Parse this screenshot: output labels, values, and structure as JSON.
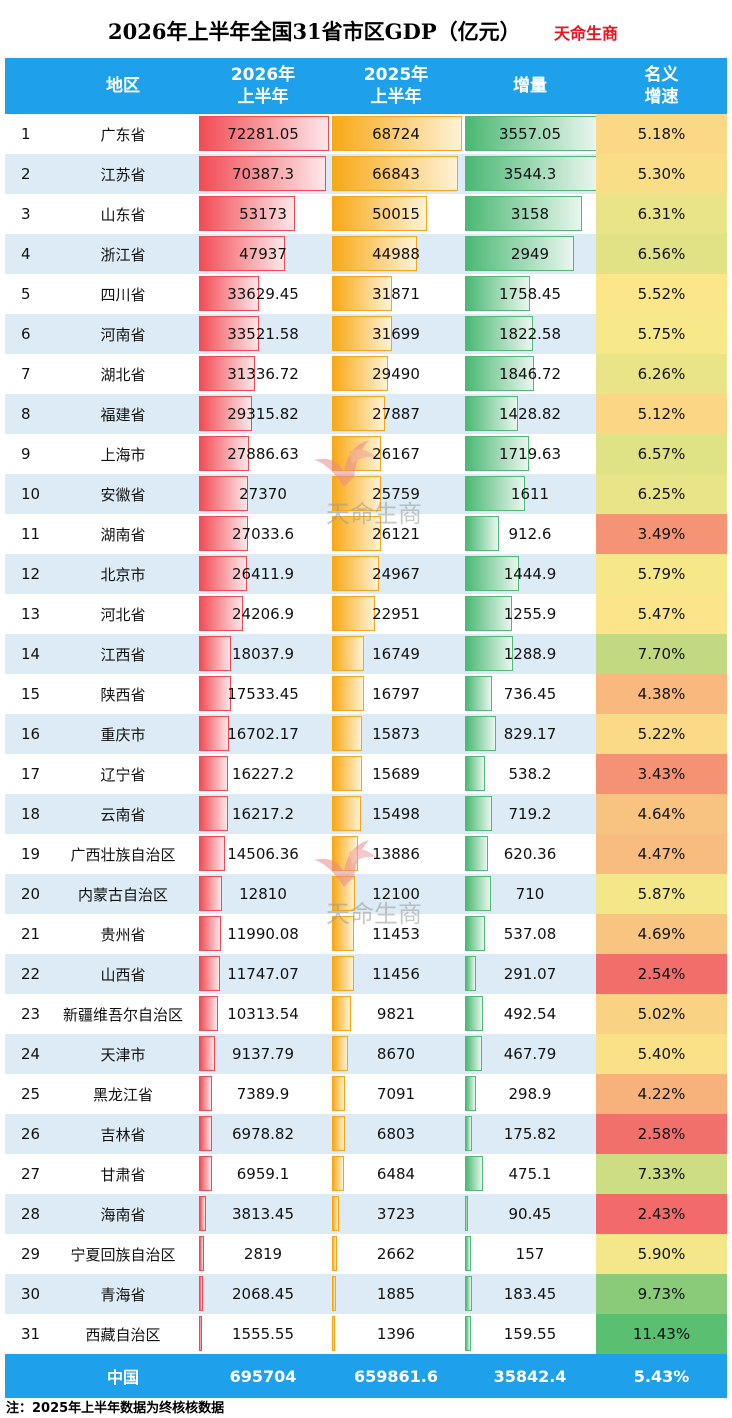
{
  "title": "2026年上半年全国31省市区GDP（亿元）",
  "brand": "天命生商",
  "header": {
    "region": "地区",
    "h2026": [
      "2026年",
      "上半年"
    ],
    "h2025": [
      "2025年",
      "上半年"
    ],
    "increase": "增量",
    "rate": [
      "名义",
      "增速"
    ]
  },
  "rows": [
    {
      "rank": "1",
      "name": "广东省",
      "v2026": "72281.05",
      "v2025": "68724",
      "inc": "3557.05",
      "rate": "5.18%"
    },
    {
      "rank": "2",
      "name": "江苏省",
      "v2026": "70387.3",
      "v2025": "66843",
      "inc": "3544.3",
      "rate": "5.30%"
    },
    {
      "rank": "3",
      "name": "山东省",
      "v2026": "53173",
      "v2025": "50015",
      "inc": "3158",
      "rate": "6.31%"
    },
    {
      "rank": "4",
      "name": "浙江省",
      "v2026": "47937",
      "v2025": "44988",
      "inc": "2949",
      "rate": "6.56%"
    },
    {
      "rank": "5",
      "name": "四川省",
      "v2026": "33629.45",
      "v2025": "31871",
      "inc": "1758.45",
      "rate": "5.52%"
    },
    {
      "rank": "6",
      "name": "河南省",
      "v2026": "33521.58",
      "v2025": "31699",
      "inc": "1822.58",
      "rate": "5.75%"
    },
    {
      "rank": "7",
      "name": "湖北省",
      "v2026": "31336.72",
      "v2025": "29490",
      "inc": "1846.72",
      "rate": "6.26%"
    },
    {
      "rank": "8",
      "name": "福建省",
      "v2026": "29315.82",
      "v2025": "27887",
      "inc": "1428.82",
      "rate": "5.12%"
    },
    {
      "rank": "9",
      "name": "上海市",
      "v2026": "27886.63",
      "v2025": "26167",
      "inc": "1719.63",
      "rate": "6.57%"
    },
    {
      "rank": "10",
      "name": "安徽省",
      "v2026": "27370",
      "v2025": "25759",
      "inc": "1611",
      "rate": "6.25%"
    },
    {
      "rank": "11",
      "name": "湖南省",
      "v2026": "27033.6",
      "v2025": "26121",
      "inc": "912.6",
      "rate": "3.49%"
    },
    {
      "rank": "12",
      "name": "北京市",
      "v2026": "26411.9",
      "v2025": "24967",
      "inc": "1444.9",
      "rate": "5.79%"
    },
    {
      "rank": "13",
      "name": "河北省",
      "v2026": "24206.9",
      "v2025": "22951",
      "inc": "1255.9",
      "rate": "5.47%"
    },
    {
      "rank": "14",
      "name": "江西省",
      "v2026": "18037.9",
      "v2025": "16749",
      "inc": "1288.9",
      "rate": "7.70%"
    },
    {
      "rank": "15",
      "name": "陕西省",
      "v2026": "17533.45",
      "v2025": "16797",
      "inc": "736.45",
      "rate": "4.38%"
    },
    {
      "rank": "16",
      "name": "重庆市",
      "v2026": "16702.17",
      "v2025": "15873",
      "inc": "829.17",
      "rate": "5.22%"
    },
    {
      "rank": "17",
      "name": "辽宁省",
      "v2026": "16227.2",
      "v2025": "15689",
      "inc": "538.2",
      "rate": "3.43%"
    },
    {
      "rank": "18",
      "name": "云南省",
      "v2026": "16217.2",
      "v2025": "15498",
      "inc": "719.2",
      "rate": "4.64%"
    },
    {
      "rank": "19",
      "name": "广西壮族自治区",
      "v2026": "14506.36",
      "v2025": "13886",
      "inc": "620.36",
      "rate": "4.47%"
    },
    {
      "rank": "20",
      "name": "内蒙古自治区",
      "v2026": "12810",
      "v2025": "12100",
      "inc": "710",
      "rate": "5.87%"
    },
    {
      "rank": "21",
      "name": "贵州省",
      "v2026": "11990.08",
      "v2025": "11453",
      "inc": "537.08",
      "rate": "4.69%"
    },
    {
      "rank": "22",
      "name": "山西省",
      "v2026": "11747.07",
      "v2025": "11456",
      "inc": "291.07",
      "rate": "2.54%"
    },
    {
      "rank": "23",
      "name": "新疆维吾尔自治区",
      "v2026": "10313.54",
      "v2025": "9821",
      "inc": "492.54",
      "rate": "5.02%"
    },
    {
      "rank": "24",
      "name": "天津市",
      "v2026": "9137.79",
      "v2025": "8670",
      "inc": "467.79",
      "rate": "5.40%"
    },
    {
      "rank": "25",
      "name": "黑龙江省",
      "v2026": "7389.9",
      "v2025": "7091",
      "inc": "298.9",
      "rate": "4.22%"
    },
    {
      "rank": "26",
      "name": "吉林省",
      "v2026": "6978.82",
      "v2025": "6803",
      "inc": "175.82",
      "rate": "2.58%"
    },
    {
      "rank": "27",
      "name": "甘肃省",
      "v2026": "6959.1",
      "v2025": "6484",
      "inc": "475.1",
      "rate": "7.33%"
    },
    {
      "rank": "28",
      "name": "海南省",
      "v2026": "3813.45",
      "v2025": "3723",
      "inc": "90.45",
      "rate": "2.43%"
    },
    {
      "rank": "29",
      "name": "宁夏回族自治区",
      "v2026": "2819",
      "v2025": "2662",
      "inc": "157",
      "rate": "5.90%"
    },
    {
      "rank": "30",
      "name": "青海省",
      "v2026": "2068.45",
      "v2025": "1885",
      "inc": "183.45",
      "rate": "9.73%"
    },
    {
      "rank": "31",
      "name": "西藏自治区",
      "v2026": "1555.55",
      "v2025": "1396",
      "inc": "159.55",
      "rate": "11.43%"
    }
  ],
  "total": {
    "name": "中国",
    "v2026": "695704",
    "v2025": "659861.6",
    "inc": "35842.4",
    "rate": "5.43%"
  },
  "note": "注：2025年上半年数据为终核核数据",
  "watermark": {
    "text": "天命生商"
  },
  "colors": {
    "header_bg": "#1ea1ea",
    "row_alt": "#dcebf5",
    "bar2026": "#f24c55",
    "bar2025": "#f8a915",
    "bar_inc": "#4bb873",
    "rate_low": "#f26a6a",
    "rate_mid": "#fbe98a",
    "rate_high": "#5bbf72"
  }
}
